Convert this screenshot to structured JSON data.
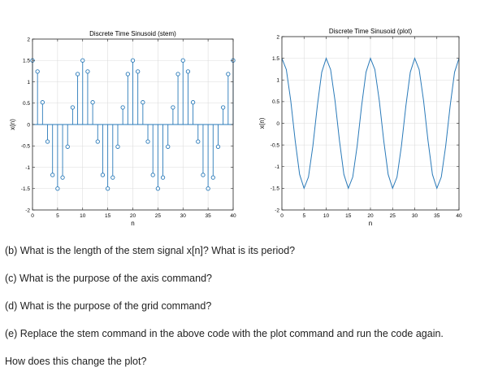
{
  "chart_data": [
    {
      "type": "stem",
      "title": "Discrete Time Sinusoid (stem)",
      "xlabel": "n",
      "ylabel": "x(n)",
      "xlim": [
        0,
        40
      ],
      "ylim": [
        -2,
        2
      ],
      "xticks": [
        "0",
        "5",
        "10",
        "15",
        "20",
        "25",
        "30",
        "35",
        "40"
      ],
      "yticks": [
        "-2",
        "-1.5",
        "-1",
        "-0.5",
        "0",
        "0.5",
        "1",
        "1.5",
        "2"
      ],
      "grid": true,
      "color": "#2a7ab9",
      "x": [
        0,
        1,
        2,
        3,
        4,
        5,
        6,
        7,
        8,
        9,
        10,
        11,
        12,
        13,
        14,
        15,
        16,
        17,
        18,
        19,
        20,
        21,
        22,
        23,
        24,
        25,
        26,
        27,
        28,
        29,
        30,
        31,
        32,
        33,
        34,
        35,
        36,
        37,
        38,
        39,
        40
      ],
      "y": [
        1.5,
        1.24,
        0.52,
        -0.4,
        -1.18,
        -1.5,
        -1.24,
        -0.52,
        0.4,
        1.18,
        1.5,
        1.24,
        0.52,
        -0.4,
        -1.18,
        -1.5,
        -1.24,
        -0.52,
        0.4,
        1.18,
        1.5,
        1.24,
        0.52,
        -0.4,
        -1.18,
        -1.5,
        -1.24,
        -0.52,
        0.4,
        1.18,
        1.5,
        1.24,
        0.52,
        -0.4,
        -1.18,
        -1.5,
        -1.24,
        -0.52,
        0.4,
        1.18,
        1.5
      ]
    },
    {
      "type": "line",
      "title": "Discrete Time Sinusoid (plot)",
      "xlabel": "n",
      "ylabel": "x(n)",
      "xlim": [
        0,
        40
      ],
      "ylim": [
        -2,
        2
      ],
      "xticks": [
        "0",
        "5",
        "10",
        "15",
        "20",
        "25",
        "30",
        "35",
        "40"
      ],
      "yticks": [
        "-2",
        "-1.5",
        "-1",
        "-0.5",
        "0",
        "0.5",
        "1",
        "1.5",
        "2"
      ],
      "grid": true,
      "color": "#2a7ab9",
      "x": [
        0,
        1,
        2,
        3,
        4,
        5,
        6,
        7,
        8,
        9,
        10,
        11,
        12,
        13,
        14,
        15,
        16,
        17,
        18,
        19,
        20,
        21,
        22,
        23,
        24,
        25,
        26,
        27,
        28,
        29,
        30,
        31,
        32,
        33,
        34,
        35,
        36,
        37,
        38,
        39,
        40
      ],
      "y": [
        1.5,
        1.24,
        0.52,
        -0.4,
        -1.18,
        -1.5,
        -1.24,
        -0.52,
        0.4,
        1.18,
        1.5,
        1.24,
        0.52,
        -0.4,
        -1.18,
        -1.5,
        -1.24,
        -0.52,
        0.4,
        1.18,
        1.5,
        1.24,
        0.52,
        -0.4,
        -1.18,
        -1.5,
        -1.24,
        -0.52,
        0.4,
        1.18,
        1.5,
        1.24,
        0.52,
        -0.4,
        -1.18,
        -1.5,
        -1.24,
        -0.52,
        0.4,
        1.18,
        1.5
      ]
    }
  ],
  "questions": {
    "b": "(b) What is the length of the stem signal x[n]? What is its period?",
    "c": "(c) What is the purpose of the axis command?",
    "d": "(d) What is the purpose of the grid command?",
    "e": "(e) Replace the stem command in the above code with the plot command and run the code again.",
    "e_cont": "How does this change the plot?"
  }
}
